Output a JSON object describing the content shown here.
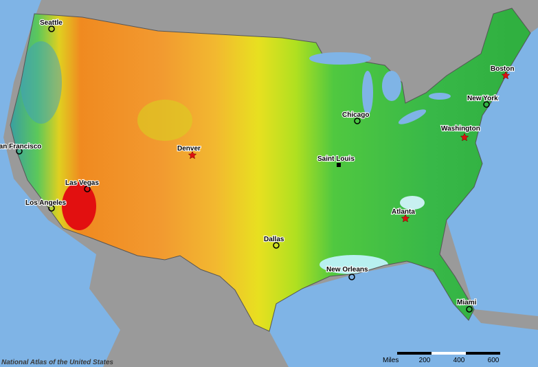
{
  "cities": [
    {
      "name": "Seattle"
    },
    {
      "name": "San Francisco"
    },
    {
      "name": "Denver"
    },
    {
      "name": "Las Vegas"
    },
    {
      "name": "Los Angeles"
    },
    {
      "name": "Dallas"
    },
    {
      "name": "Saint Louis"
    },
    {
      "name": "Chicago"
    },
    {
      "name": "Atlanta"
    },
    {
      "name": "New Orleans"
    },
    {
      "name": "Miami"
    },
    {
      "name": "Washington"
    },
    {
      "name": "New York"
    },
    {
      "name": "Boston"
    }
  ],
  "scale_bar": {
    "unit": "Miles",
    "ticks": [
      200,
      400,
      600
    ]
  },
  "credit": "National Atlas of the United States"
}
